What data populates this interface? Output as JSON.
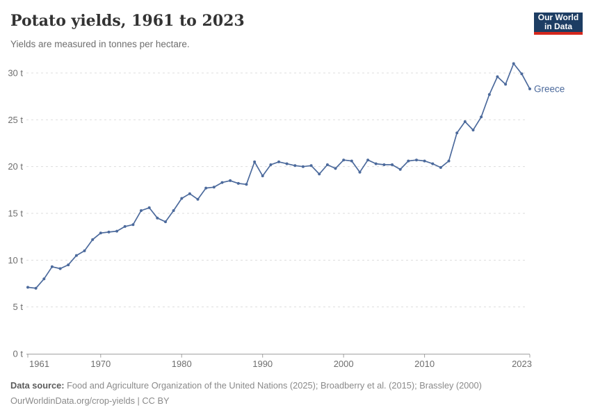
{
  "header": {
    "title": "Potato yields, 1961 to 2023",
    "subtitle": "Yields are measured in tonnes per hectare."
  },
  "logo": {
    "line1": "Our World",
    "line2": "in Data",
    "bg_color": "#1d3d63",
    "bar_color": "#d5271d",
    "text_color": "#ffffff"
  },
  "chart_data": {
    "type": "line",
    "title": "Potato yields, 1961 to 2023",
    "ylabel": "tonnes per hectare",
    "xlabel": "",
    "grid": "horizontal-dashed",
    "legend_position": "end-of-line-label",
    "ylim": [
      0,
      30
    ],
    "x_ticks": [
      1961,
      1970,
      1980,
      1990,
      2000,
      2010,
      2023
    ],
    "y_ticks": [
      {
        "value": 0,
        "label": "0 t"
      },
      {
        "value": 5,
        "label": "5 t"
      },
      {
        "value": 10,
        "label": "10 t"
      },
      {
        "value": 15,
        "label": "15 t"
      },
      {
        "value": 20,
        "label": "20 t"
      },
      {
        "value": 25,
        "label": "25 t"
      },
      {
        "value": 30,
        "label": "30 t"
      }
    ],
    "x": [
      1961,
      1962,
      1963,
      1964,
      1965,
      1966,
      1967,
      1968,
      1969,
      1970,
      1971,
      1972,
      1973,
      1974,
      1975,
      1976,
      1977,
      1978,
      1979,
      1980,
      1981,
      1982,
      1983,
      1984,
      1985,
      1986,
      1987,
      1988,
      1989,
      1990,
      1991,
      1992,
      1993,
      1994,
      1995,
      1996,
      1997,
      1998,
      1999,
      2000,
      2001,
      2002,
      2003,
      2004,
      2005,
      2006,
      2007,
      2008,
      2009,
      2010,
      2011,
      2012,
      2013,
      2014,
      2015,
      2016,
      2017,
      2018,
      2019,
      2020,
      2021,
      2022,
      2023
    ],
    "series": [
      {
        "name": "Greece",
        "color": "#4C6A9C",
        "values": [
          7.1,
          7.0,
          8.0,
          9.3,
          9.1,
          9.5,
          10.5,
          11.0,
          12.2,
          12.9,
          13.0,
          13.1,
          13.6,
          13.8,
          15.3,
          15.6,
          14.5,
          14.1,
          15.3,
          16.6,
          17.1,
          16.5,
          17.7,
          17.8,
          18.3,
          18.5,
          18.2,
          18.1,
          20.5,
          19.0,
          20.2,
          20.5,
          20.3,
          20.1,
          20.0,
          20.1,
          19.2,
          20.2,
          19.8,
          20.7,
          20.6,
          19.4,
          20.7,
          20.3,
          20.2,
          20.2,
          19.7,
          20.6,
          20.7,
          20.6,
          20.3,
          19.9,
          20.6,
          23.6,
          24.8,
          23.9,
          25.3,
          27.7,
          29.6,
          28.8,
          31.0,
          29.9,
          28.3
        ]
      }
    ]
  },
  "footer": {
    "source_label": "Data source:",
    "source_text": " Food and Agriculture Organization of the United Nations (2025); Broadberry et al. (2015); Brassley (2000)",
    "license_line": "OurWorldinData.org/crop-yields | CC BY"
  },
  "colors": {
    "line": "#4C6A9C",
    "grid": "#dddddd",
    "axis": "#a0a0a0",
    "tick_label": "#6e6e6e",
    "entity_label": "#4C6A9C"
  }
}
